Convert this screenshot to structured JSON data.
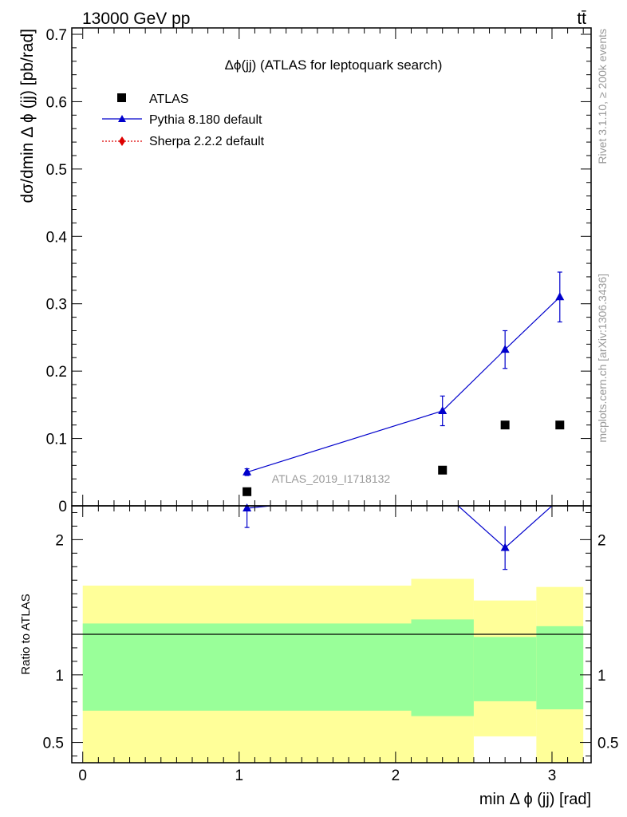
{
  "header": {
    "left": "13000 GeV pp",
    "right": "tt̄"
  },
  "side_labels": {
    "rivet": "Rivet 3.1.10, ≥ 200k events",
    "mcplots": "mcplots.cern.ch [arXiv:1306.3436]"
  },
  "colors": {
    "atlas": "#000000",
    "pythia": "#0000cc",
    "sherpa": "#dd0000",
    "band_inner": "#99ff99",
    "band_outer": "#ffff99"
  },
  "chart_data": [
    {
      "type": "scatter",
      "title": "Δϕ(jj) (ATLAS for leptoquark search)",
      "ylabel": "dσ/dmin Δ ϕ (jj) [pb/rad]",
      "xlim": [
        -0.07,
        3.25
      ],
      "ylim": [
        0,
        0.7
      ],
      "yticks": [
        "0",
        "0.1",
        "0.2",
        "0.3",
        "0.4",
        "0.5",
        "0.6",
        "0.7"
      ],
      "analysis_label": "ATLAS_2019_I1718132",
      "legend": [
        "ATLAS",
        "Pythia 8.180 default",
        "Sherpa 2.2.2 default"
      ],
      "legend_position": "top-left",
      "series": [
        {
          "name": "ATLAS",
          "x": [
            1.05,
            2.3,
            2.7,
            3.05
          ],
          "y": [
            0.021,
            0.053,
            0.12,
            0.12
          ]
        },
        {
          "name": "Pythia 8.180 default",
          "x": [
            1.05,
            2.3,
            2.7,
            3.05
          ],
          "y": [
            0.05,
            0.141,
            0.232,
            0.31
          ],
          "yerr": [
            0.005,
            0.022,
            0.028,
            0.037
          ]
        },
        {
          "name": "Sherpa 2.2.2 default",
          "x": [],
          "y": []
        }
      ]
    },
    {
      "type": "line",
      "ylabel": "Ratio to ATLAS",
      "xlabel": "min Δ ϕ (jj) [rad]",
      "xlim": [
        -0.07,
        3.25
      ],
      "ylim": [
        0.35,
        2.25
      ],
      "yticks": [
        "0.5",
        "1",
        "2"
      ],
      "xticks": [
        "0",
        "1",
        "2",
        "3"
      ],
      "bins": [
        0,
        2.1,
        2.5,
        2.9,
        3.2
      ],
      "band_inner": {
        "lo": [
          0.735,
          0.695,
          0.805,
          0.745
        ],
        "hi": [
          1.38,
          1.41,
          1.28,
          1.36
        ]
      },
      "band_outer": {
        "lo": [
          0.35,
          0.35,
          0.545,
          0.35
        ],
        "hi": [
          1.66,
          1.71,
          1.55,
          1.65
        ]
      },
      "series": [
        {
          "name": "Pythia 8.180 default",
          "x": [
            1.05,
            2.7
          ],
          "y": [
            2.25,
            1.94
          ],
          "yerr": [
            0.16,
            0.16
          ]
        }
      ]
    }
  ]
}
